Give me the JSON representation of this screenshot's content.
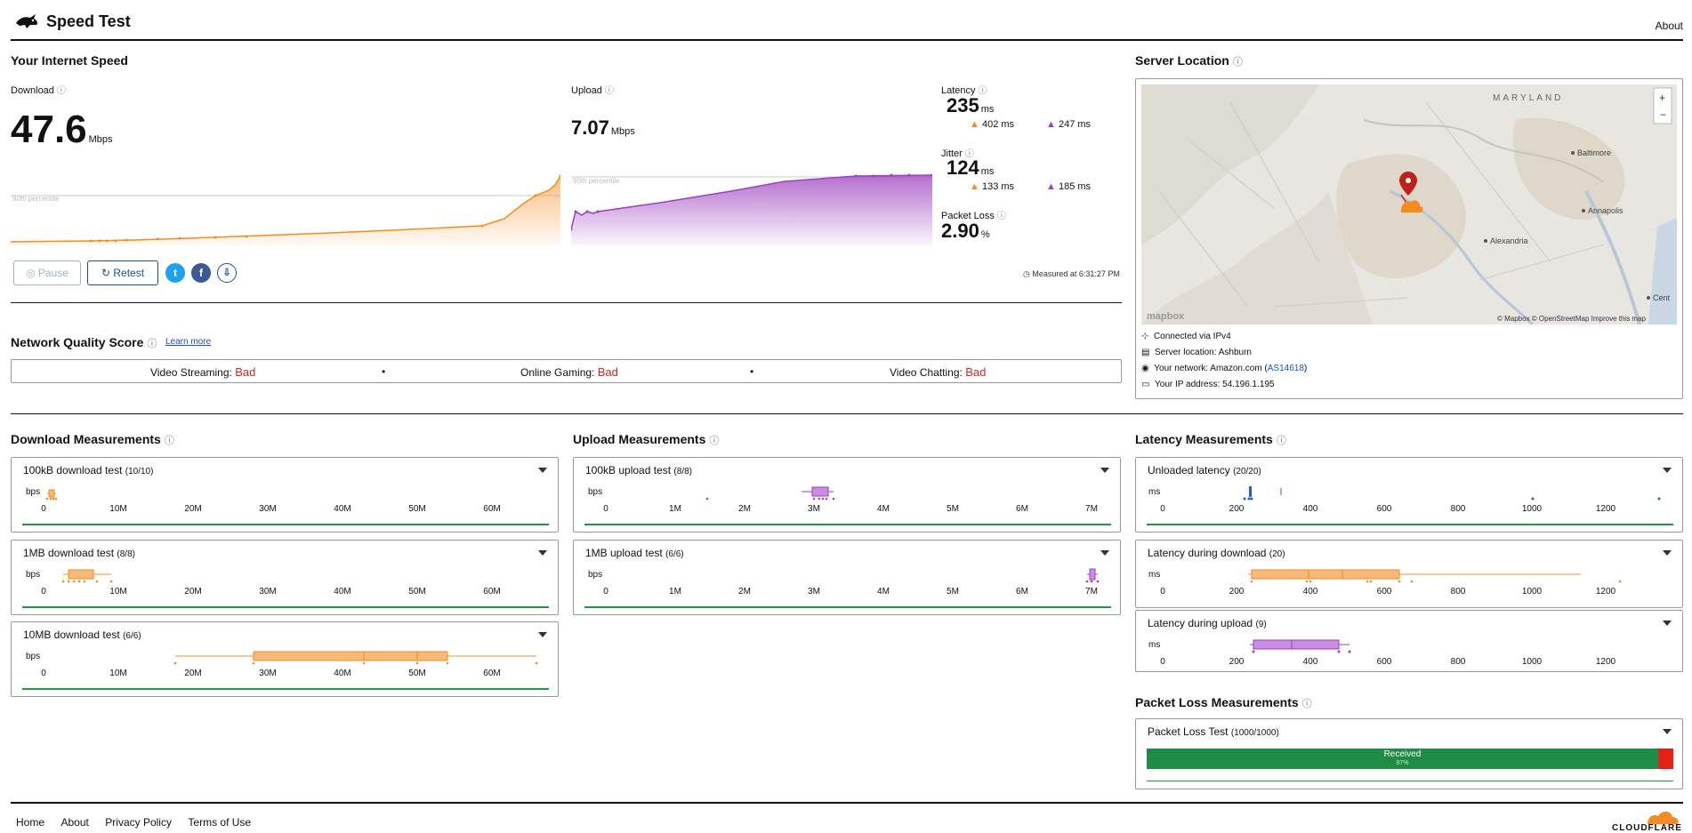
{
  "header": {
    "title": "Speed Test",
    "about": "About"
  },
  "speed": {
    "section_title": "Your Internet Speed",
    "download": {
      "label": "Download",
      "value": "47.6",
      "unit": "Mbps",
      "percentile_label": "90th percentile"
    },
    "upload": {
      "label": "Upload",
      "value": "7.07",
      "unit": "Mbps",
      "percentile_label": "90th percentile"
    },
    "latency": {
      "label": "Latency",
      "value": "235",
      "unit": "ms",
      "down": "402 ms",
      "up": "247 ms"
    },
    "jitter": {
      "label": "Jitter",
      "value": "124",
      "unit": "ms",
      "down": "133 ms",
      "up": "185 ms"
    },
    "packet_loss": {
      "label": "Packet Loss",
      "value": "2.90",
      "unit": "%"
    },
    "pause_label": "Pause",
    "retest_label": "Retest",
    "measured_at": "Measured at 6:31:27 PM"
  },
  "server": {
    "section_title": "Server Location",
    "map_labels": {
      "state": "MARYLAND",
      "baltimore": "Baltimore",
      "annapolis": "Annapolis",
      "alexandria": "Alexandria",
      "cent": "Cent"
    },
    "attribution": "© Mapbox © OpenStreetMap  Improve this map",
    "mapbox": "mapbox",
    "connected": "Connected via IPv4",
    "location": "Server location: Ashburn",
    "network_prefix": "Your network: Amazon.com (",
    "network_link": "AS14618",
    "network_suffix": ")",
    "ip": "Your IP address: 54.196.1.195"
  },
  "nqs": {
    "title": "Network Quality Score",
    "learn_more": "Learn more",
    "streaming_label": "Video Streaming:",
    "streaming_value": "Bad",
    "gaming_label": "Online Gaming:",
    "gaming_value": "Bad",
    "chatting_label": "Video Chatting:",
    "chatting_value": "Bad",
    "dot": "•"
  },
  "download_measurements": {
    "title": "Download Measurements",
    "axis_unit": "bps",
    "ticks": [
      "0",
      "10M",
      "20M",
      "30M",
      "40M",
      "50M",
      "60M"
    ],
    "tests": [
      {
        "title": "100kB download test",
        "count": "(10/10)"
      },
      {
        "title": "1MB download test",
        "count": "(8/8)"
      },
      {
        "title": "10MB download test",
        "count": "(6/6)"
      }
    ]
  },
  "upload_measurements": {
    "title": "Upload Measurements",
    "axis_unit": "bps",
    "ticks": [
      "0",
      "1M",
      "2M",
      "3M",
      "4M",
      "5M",
      "6M",
      "7M"
    ],
    "tests": [
      {
        "title": "100kB upload test",
        "count": "(8/8)"
      },
      {
        "title": "1MB upload test",
        "count": "(6/6)"
      }
    ]
  },
  "latency_measurements": {
    "title": "Latency Measurements",
    "axis_unit": "ms",
    "ticks": [
      "0",
      "200",
      "400",
      "600",
      "800",
      "1000",
      "1200"
    ],
    "tests": [
      {
        "title": "Unloaded latency",
        "count": "(20/20)"
      },
      {
        "title": "Latency during download",
        "count": "(20)"
      },
      {
        "title": "Latency during upload",
        "count": "(9)"
      }
    ]
  },
  "packet_loss_measurements": {
    "title": "Packet Loss Measurements",
    "test_title": "Packet Loss Test",
    "count": "(1000/1000)",
    "received_label": "Received",
    "received_pct": "97%",
    "received_fraction": 0.971
  },
  "footer": {
    "home": "Home",
    "about": "About",
    "privacy": "Privacy Policy",
    "terms": "Terms of Use",
    "brand": "CLOUDFLARE"
  },
  "colors": {
    "download": "#f68b1f",
    "upload": "#9c3fc0",
    "latency": "#1f5fc1",
    "good": "#1a9c3e",
    "bad": "#d0261e"
  }
}
